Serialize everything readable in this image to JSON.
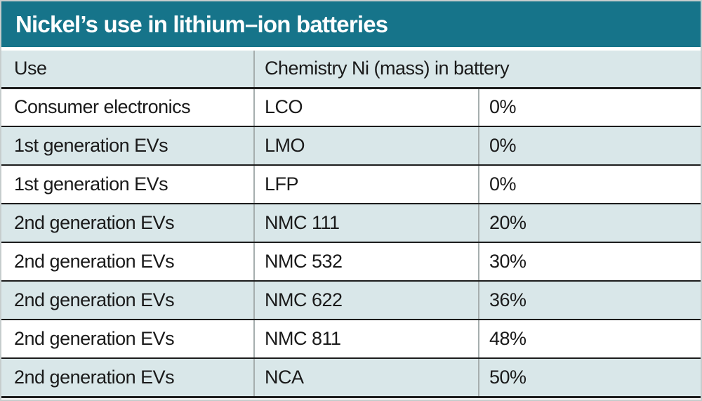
{
  "title": "Nickel’s use in lithium–ion batteries",
  "table": {
    "header": {
      "use": "Use",
      "chemistry_ni": "Chemistry Ni (mass) in battery"
    },
    "rows": [
      {
        "use": "Consumer electronics",
        "chemistry": "LCO",
        "ni_mass": "0%"
      },
      {
        "use": "1st generation EVs",
        "chemistry": "LMO",
        "ni_mass": "0%"
      },
      {
        "use": "1st generation EVs",
        "chemistry": "LFP",
        "ni_mass": "0%"
      },
      {
        "use": "2nd generation EVs",
        "chemistry": "NMC 111",
        "ni_mass": "20%"
      },
      {
        "use": "2nd generation EVs",
        "chemistry": "NMC 532",
        "ni_mass": "30%"
      },
      {
        "use": "2nd generation EVs",
        "chemistry": "NMC 622",
        "ni_mass": "36%"
      },
      {
        "use": "2nd generation EVs",
        "chemistry": "NMC 811",
        "ni_mass": "48%"
      },
      {
        "use": "2nd generation EVs",
        "chemistry": "NCA",
        "ni_mass": "50%"
      }
    ]
  },
  "colors": {
    "title_bar_bg": "#16748a",
    "title_text": "#ffffff",
    "row_alt_bg": "#d9e7e9",
    "row_bg": "#ffffff",
    "rule_dark": "#1c1c1c",
    "divider_gray": "#a6aeae",
    "outer_border": "#c6cdcd",
    "text": "#1a1a1a"
  },
  "chart_data": {
    "type": "table",
    "title": "Nickel’s use in lithium–ion batteries",
    "columns": [
      "Use",
      "Chemistry",
      "Ni (mass) in battery"
    ],
    "header_rendered": [
      "Use",
      "Chemistry Ni (mass) in battery"
    ],
    "rows": [
      [
        "Consumer electronics",
        "LCO",
        "0%"
      ],
      [
        "1st generation EVs",
        "LMO",
        "0%"
      ],
      [
        "1st generation EVs",
        "LFP",
        "0%"
      ],
      [
        "2nd generation EVs",
        "NMC 111",
        "20%"
      ],
      [
        "2nd generation EVs",
        "NMC 532",
        "30%"
      ],
      [
        "2nd generation EVs",
        "NMC 622",
        "36%"
      ],
      [
        "2nd generation EVs",
        "NMC 811",
        "48%"
      ],
      [
        "2nd generation EVs",
        "NCA",
        "50%"
      ]
    ],
    "ni_mass_percent": [
      0,
      0,
      0,
      20,
      30,
      36,
      48,
      50
    ],
    "layout": {
      "header_span": "Chemistry header spans columns 2-3",
      "row_striping": "white / light-blue alternating, header light-blue",
      "grid": "dark horizontal rules, gray vertical dividers"
    }
  }
}
